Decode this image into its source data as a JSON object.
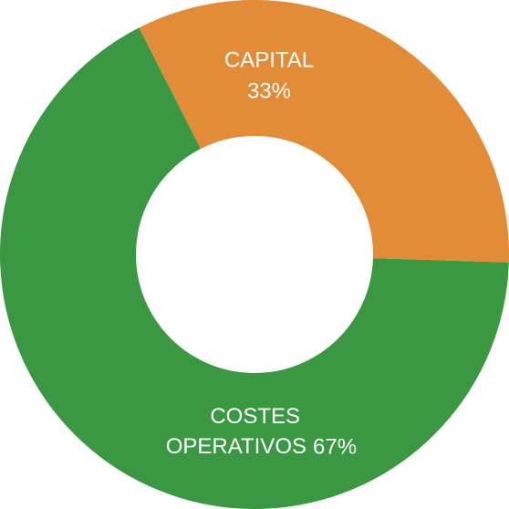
{
  "chart_data": {
    "type": "donut",
    "categories": [
      "CAPITAL",
      "COSTES OPERATIVOS"
    ],
    "values": [
      33,
      67
    ],
    "value_labels": [
      "33%",
      "67%"
    ],
    "colors": [
      "#e38c37",
      "#3a9843"
    ]
  }
}
